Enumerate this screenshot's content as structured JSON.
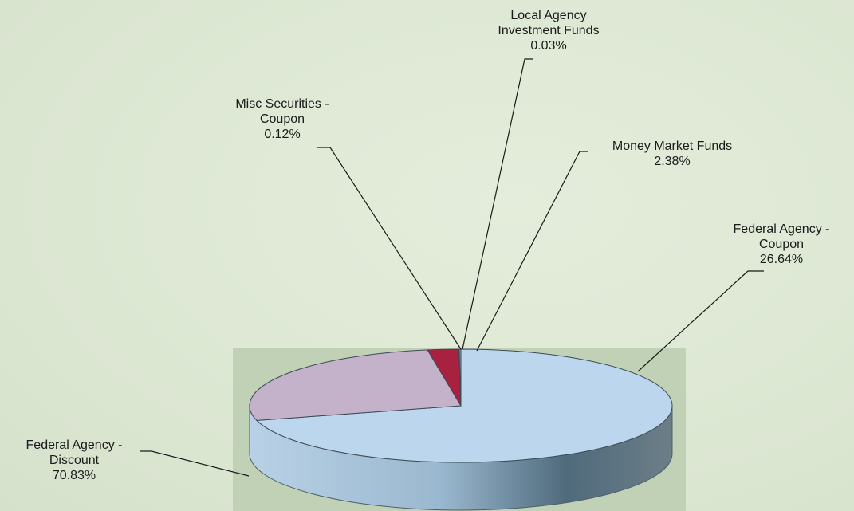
{
  "chart_data": {
    "type": "pie",
    "title": "",
    "series": [
      {
        "slices": [
          {
            "name_lines": [
              "Federal Agency -",
              "Discount"
            ],
            "value": 70.83,
            "value_label": "70.83%",
            "color": "#bcd6ee"
          },
          {
            "name_lines": [
              "Federal Agency -",
              "Coupon"
            ],
            "value": 26.64,
            "value_label": "26.64%",
            "color": "#c3b2c9"
          },
          {
            "name_lines": [
              "Money Market Funds"
            ],
            "value": 2.38,
            "value_label": "2.38%",
            "color": "#a8213f"
          },
          {
            "name_lines": [
              "Local Agency",
              "Investment Funds"
            ],
            "value": 0.03,
            "value_label": "0.03%",
            "color": "#5b7a9a"
          },
          {
            "name_lines": [
              "Misc Securities -",
              "Coupon"
            ],
            "value": 0.12,
            "value_label": "0.12%",
            "color": "#8aa6c4"
          }
        ]
      }
    ],
    "style": "3d",
    "legend": "none",
    "background_color": "#dfe9d6",
    "plot_area_color": "#c2d2b8"
  }
}
